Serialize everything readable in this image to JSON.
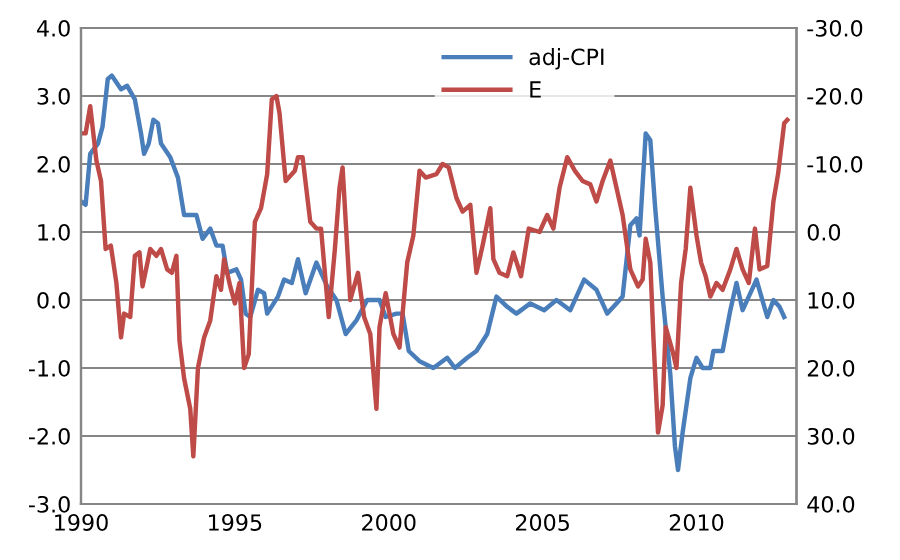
{
  "chart_data": {
    "type": "line",
    "xlim": [
      1990,
      2013.25
    ],
    "xticks": [
      1990,
      1995,
      2000,
      2005,
      2010
    ],
    "ylim": [
      -3,
      4
    ],
    "yticks": [
      {
        "value": 4,
        "label": "4.0"
      },
      {
        "value": 3,
        "label": "3.0"
      },
      {
        "value": 2,
        "label": "2.0"
      },
      {
        "value": 1,
        "label": "1.0"
      },
      {
        "value": 0,
        "label": "0.0"
      },
      {
        "value": -1,
        "label": "-1.0"
      },
      {
        "value": -2,
        "label": "-2.0"
      },
      {
        "value": -3,
        "label": "-3.0"
      }
    ],
    "y2lim": [
      40,
      -30
    ],
    "y2ticks": [
      {
        "value": -30,
        "label": "-30.0"
      },
      {
        "value": -20,
        "label": "-20.0"
      },
      {
        "value": -10,
        "label": "-10.0"
      },
      {
        "value": 0,
        "label": "0.0"
      },
      {
        "value": 10,
        "label": "10.0"
      },
      {
        "value": 20,
        "label": "20.0"
      },
      {
        "value": 30,
        "label": "30.0"
      },
      {
        "value": 40,
        "label": "40.0"
      }
    ],
    "grid": "y",
    "legend": "top",
    "marker": "none",
    "line_style": "solid",
    "series": [
      {
        "name": "adj-CPI",
        "color": "#4a7ebb",
        "x": [
          1990.0,
          1990.15,
          1990.3,
          1990.55,
          1990.7,
          1990.87,
          1991.0,
          1991.3,
          1991.5,
          1991.75,
          1991.95,
          1992.05,
          1992.2,
          1992.35,
          1992.5,
          1992.6,
          1992.9,
          1993.15,
          1993.35,
          1993.75,
          1993.95,
          1994.2,
          1994.4,
          1994.6,
          1994.75,
          1995.05,
          1995.2,
          1995.35,
          1995.5,
          1995.75,
          1995.95,
          1996.05,
          1996.4,
          1996.6,
          1996.85,
          1997.05,
          1997.3,
          1997.65,
          1998.0,
          1998.3,
          1998.6,
          1998.95,
          1999.3,
          1999.7,
          1999.9,
          2000.25,
          2000.45,
          2000.65,
          2001.0,
          2001.45,
          2001.9,
          2002.15,
          2002.55,
          2002.85,
          2003.2,
          2003.5,
          2003.85,
          2004.15,
          2004.6,
          2005.05,
          2005.45,
          2005.9,
          2006.35,
          2006.75,
          2007.1,
          2007.4,
          2007.6,
          2007.85,
          2008.05,
          2008.15,
          2008.35,
          2008.5,
          2008.65,
          2008.9,
          2009.15,
          2009.3,
          2009.4,
          2009.55,
          2009.8,
          2010.0,
          2010.2,
          2010.45,
          2010.55,
          2010.85,
          2011.1,
          2011.3,
          2011.5,
          2011.95,
          2012.3,
          2012.5,
          2012.7,
          2012.85
        ],
        "values": [
          1.45,
          1.4,
          2.15,
          2.3,
          2.55,
          3.25,
          3.3,
          3.1,
          3.15,
          2.95,
          2.45,
          2.15,
          2.3,
          2.65,
          2.6,
          2.3,
          2.1,
          1.8,
          1.25,
          1.25,
          0.9,
          1.05,
          0.8,
          0.8,
          0.4,
          0.45,
          0.3,
          -0.2,
          -0.25,
          0.15,
          0.1,
          -0.2,
          0.05,
          0.3,
          0.25,
          0.6,
          0.1,
          0.55,
          0.2,
          0.0,
          -0.5,
          -0.3,
          0.0,
          0.0,
          -0.25,
          -0.2,
          -0.2,
          -0.75,
          -0.9,
          -1.0,
          -0.85,
          -1.0,
          -0.85,
          -0.75,
          -0.5,
          0.05,
          -0.1,
          -0.2,
          -0.05,
          -0.15,
          0.0,
          -0.15,
          0.3,
          0.15,
          -0.2,
          -0.05,
          0.05,
          1.1,
          1.2,
          0.95,
          2.45,
          2.35,
          1.4,
          0.05,
          -1.1,
          -2.15,
          -2.5,
          -1.95,
          -1.15,
          -0.85,
          -1.0,
          -1.0,
          -0.75,
          -0.75,
          -0.15,
          0.25,
          -0.15,
          0.3,
          -0.25,
          0.0,
          -0.1,
          -0.25
        ]
      },
      {
        "name": "E",
        "color": "#be4b48",
        "axis": "y2",
        "x": [
          1990.0,
          1990.15,
          1990.3,
          1990.5,
          1990.65,
          1990.8,
          1990.97,
          1991.15,
          1991.3,
          1991.4,
          1991.6,
          1991.75,
          1991.9,
          1992.0,
          1992.25,
          1992.45,
          1992.6,
          1992.8,
          1992.95,
          1993.1,
          1993.2,
          1993.35,
          1993.55,
          1993.65,
          1993.8,
          1994.0,
          1994.2,
          1994.4,
          1994.55,
          1994.65,
          1994.85,
          1995.0,
          1995.15,
          1995.3,
          1995.45,
          1995.65,
          1995.85,
          1996.05,
          1996.2,
          1996.35,
          1996.45,
          1996.65,
          1996.95,
          1997.05,
          1997.2,
          1997.45,
          1997.65,
          1997.8,
          1998.05,
          1998.25,
          1998.4,
          1998.5,
          1998.75,
          1999.0,
          1999.2,
          1999.4,
          1999.6,
          1999.7,
          1999.9,
          2000.15,
          2000.35,
          2000.6,
          2000.8,
          2001.0,
          2001.2,
          2001.55,
          2001.75,
          2001.95,
          2002.2,
          2002.4,
          2002.65,
          2002.85,
          2003.05,
          2003.3,
          2003.4,
          2003.6,
          2003.85,
          2004.05,
          2004.3,
          2004.55,
          2004.9,
          2005.15,
          2005.35,
          2005.55,
          2005.8,
          2006.05,
          2006.3,
          2006.55,
          2006.75,
          2006.95,
          2007.2,
          2007.4,
          2007.6,
          2007.85,
          2008.1,
          2008.25,
          2008.35,
          2008.5,
          2008.6,
          2008.75,
          2008.9,
          2009.0,
          2009.25,
          2009.35,
          2009.5,
          2009.65,
          2009.8,
          2010.0,
          2010.15,
          2010.3,
          2010.45,
          2010.65,
          2010.85,
          2011.1,
          2011.3,
          2011.5,
          2011.7,
          2011.9,
          2012.05,
          2012.3,
          2012.5,
          2012.65,
          2012.85,
          2012.95
        ],
        "values": [
          -14.5,
          -14.5,
          -18.5,
          -10.5,
          -7.5,
          2.5,
          2,
          7.5,
          15.5,
          12,
          12.5,
          3.5,
          3,
          8,
          2.5,
          3.5,
          2.5,
          5.5,
          6,
          3.5,
          16,
          21.5,
          26,
          33,
          20,
          15.5,
          13,
          6.5,
          8.5,
          4,
          8,
          10.5,
          7.5,
          20,
          18,
          -1.5,
          -3.5,
          -8.5,
          -19.5,
          -20,
          -17.5,
          -7.5,
          -9,
          -11,
          -11,
          -1.5,
          -0.5,
          -0.5,
          12.5,
          2.5,
          -6.5,
          -9.5,
          10,
          6,
          12.5,
          15,
          26,
          14,
          9,
          15,
          17,
          4.5,
          0.5,
          -9,
          -8,
          -8.5,
          -10,
          -9.5,
          -5,
          -3,
          -4,
          6,
          2,
          -3.5,
          4,
          6,
          6.5,
          3,
          6.5,
          -0.5,
          0,
          -2.5,
          -0.5,
          -6.5,
          -11,
          -9,
          -7.5,
          -7,
          -4.5,
          -7.5,
          -10.5,
          -6.5,
          -2.5,
          5.5,
          8,
          7,
          1,
          4.5,
          15.5,
          29.5,
          25.5,
          14,
          18,
          20,
          7.5,
          2.5,
          -6.5,
          0.5,
          4.5,
          6.5,
          9.5,
          7.5,
          8.5,
          5.5,
          2.5,
          5.5,
          7.5,
          -0.5,
          5.5,
          5,
          -4.5,
          -8.5,
          -16,
          -16.5
        ]
      }
    ]
  }
}
